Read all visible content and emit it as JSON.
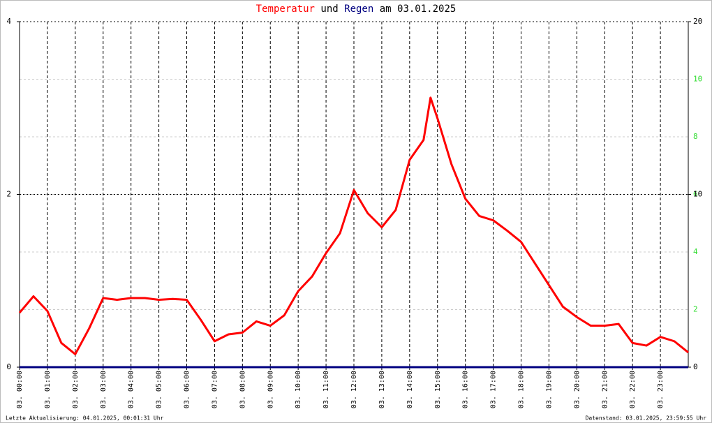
{
  "chart_data": {
    "type": "line",
    "title_parts": [
      "und",
      "am 03.01.2025"
    ],
    "footer_left": "Letzte Aktualisierung: 04.01.2025, 00:01:31 Uhr",
    "footer_right": "Datenstand: 03.01.2025, 23:59:55 Uhr",
    "x": [
      0,
      0.5,
      1,
      1.5,
      2,
      2.5,
      3,
      3.5,
      4,
      4.5,
      5,
      5.5,
      6,
      6.5,
      7,
      7.5,
      8,
      8.5,
      9,
      9.5,
      10,
      10.5,
      11,
      11.5,
      12,
      12.5,
      13,
      13.5,
      14,
      14.5,
      14.75,
      15,
      15.5,
      16,
      16.5,
      17,
      17.5,
      18,
      18.5,
      19,
      19.5,
      20,
      20.5,
      21,
      21.5,
      22,
      22.5,
      23,
      23.5,
      24
    ],
    "xlim": [
      0,
      24
    ],
    "xticks": [
      {
        "value": 0,
        "label": "03. 00:00"
      },
      {
        "value": 1,
        "label": "03. 01:00"
      },
      {
        "value": 2,
        "label": "03. 02:00"
      },
      {
        "value": 3,
        "label": "03. 03:00"
      },
      {
        "value": 4,
        "label": "03. 04:00"
      },
      {
        "value": 5,
        "label": "03. 05:00"
      },
      {
        "value": 6,
        "label": "03. 06:00"
      },
      {
        "value": 7,
        "label": "03. 07:00"
      },
      {
        "value": 8,
        "label": "03. 08:00"
      },
      {
        "value": 9,
        "label": "03. 09:00"
      },
      {
        "value": 10,
        "label": "03. 10:00"
      },
      {
        "value": 11,
        "label": "03. 11:00"
      },
      {
        "value": 12,
        "label": "03. 12:00"
      },
      {
        "value": 13,
        "label": "03. 13:00"
      },
      {
        "value": 14,
        "label": "03. 14:00"
      },
      {
        "value": 15,
        "label": "03. 15:00"
      },
      {
        "value": 16,
        "label": "03. 16:00"
      },
      {
        "value": 17,
        "label": "03. 17:00"
      },
      {
        "value": 18,
        "label": "03. 18:00"
      },
      {
        "value": 19,
        "label": "03. 19:00"
      },
      {
        "value": 20,
        "label": "03. 20:00"
      },
      {
        "value": 21,
        "label": "03. 21:00"
      },
      {
        "value": 22,
        "label": "03. 22:00"
      },
      {
        "value": 23,
        "label": "03. 23:00"
      }
    ],
    "ylim": [
      0,
      4
    ],
    "yticks": [
      0,
      2,
      4
    ],
    "y2lim": [
      0,
      20
    ],
    "y2ticks": [
      0,
      10,
      20
    ],
    "y3lim": [
      0,
      12
    ],
    "y3ticks": [
      2,
      4,
      6,
      8,
      10
    ],
    "y3color": "#33dd33",
    "grid": true,
    "series": [
      {
        "name": "Temperatur",
        "color": "#ff0000",
        "values": [
          0.63,
          0.82,
          0.65,
          0.28,
          0.15,
          0.45,
          0.8,
          0.78,
          0.8,
          0.8,
          0.78,
          0.79,
          0.78,
          0.55,
          0.3,
          0.38,
          0.4,
          0.53,
          0.48,
          0.6,
          0.88,
          1.05,
          1.32,
          1.55,
          2.05,
          1.78,
          1.62,
          1.82,
          2.4,
          2.63,
          3.12,
          2.88,
          2.35,
          1.95,
          1.75,
          1.7,
          1.58,
          1.45,
          1.2,
          0.95,
          0.7,
          0.58,
          0.48,
          0.48,
          0.5,
          0.28,
          0.25,
          0.35,
          0.3,
          0.17
        ]
      },
      {
        "name": "Regen",
        "color": "#000080",
        "axis": "y2",
        "values": [
          0,
          0,
          0,
          0,
          0,
          0,
          0,
          0,
          0,
          0,
          0,
          0,
          0,
          0,
          0,
          0,
          0,
          0,
          0,
          0,
          0,
          0,
          0,
          0,
          0,
          0,
          0,
          0,
          0,
          0,
          0,
          0,
          0,
          0,
          0,
          0,
          0,
          0,
          0,
          0,
          0,
          0,
          0,
          0,
          0,
          0,
          0,
          0,
          0,
          0
        ]
      }
    ]
  }
}
